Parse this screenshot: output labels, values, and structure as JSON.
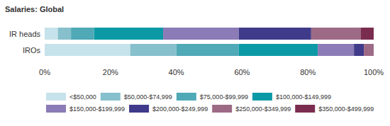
{
  "chart_data": {
    "type": "bar",
    "title": "Salaries: Global",
    "orientation": "horizontal",
    "stacked": true,
    "grid": false,
    "data_labels": false,
    "categories": [
      "IR heads",
      "IROs"
    ],
    "xlim": [
      0,
      100
    ],
    "xticks": [
      {
        "value": 0,
        "label": "0%"
      },
      {
        "value": 20,
        "label": "20%"
      },
      {
        "value": 40,
        "label": "40%"
      },
      {
        "value": 60,
        "label": "60%"
      },
      {
        "value": 80,
        "label": "80%"
      },
      {
        "value": 100,
        "label": "100%"
      }
    ],
    "series": [
      {
        "name": "<$50,000",
        "color": "#c6e2ea",
        "values": [
          4,
          26
        ]
      },
      {
        "name": "$50,000-$74,999",
        "color": "#86c0cc",
        "values": [
          4,
          14
        ]
      },
      {
        "name": "$75,000-$99,999",
        "color": "#4fa9b6",
        "values": [
          7,
          19
        ]
      },
      {
        "name": "$100,000-$149,999",
        "color": "#0b9aa5",
        "values": [
          21,
          24
        ]
      },
      {
        "name": "$150,000-$199,999",
        "color": "#8b7bb6",
        "values": [
          23,
          11
        ]
      },
      {
        "name": "$200,000-$249,999",
        "color": "#3f3a8a",
        "values": [
          22,
          3
        ]
      },
      {
        "name": "$250,000-$349,999",
        "color": "#9d6a86",
        "values": [
          15,
          3
        ]
      },
      {
        "name": "$350,000-$499,999",
        "color": "#7b2d4f",
        "values": [
          4,
          0
        ]
      }
    ]
  }
}
